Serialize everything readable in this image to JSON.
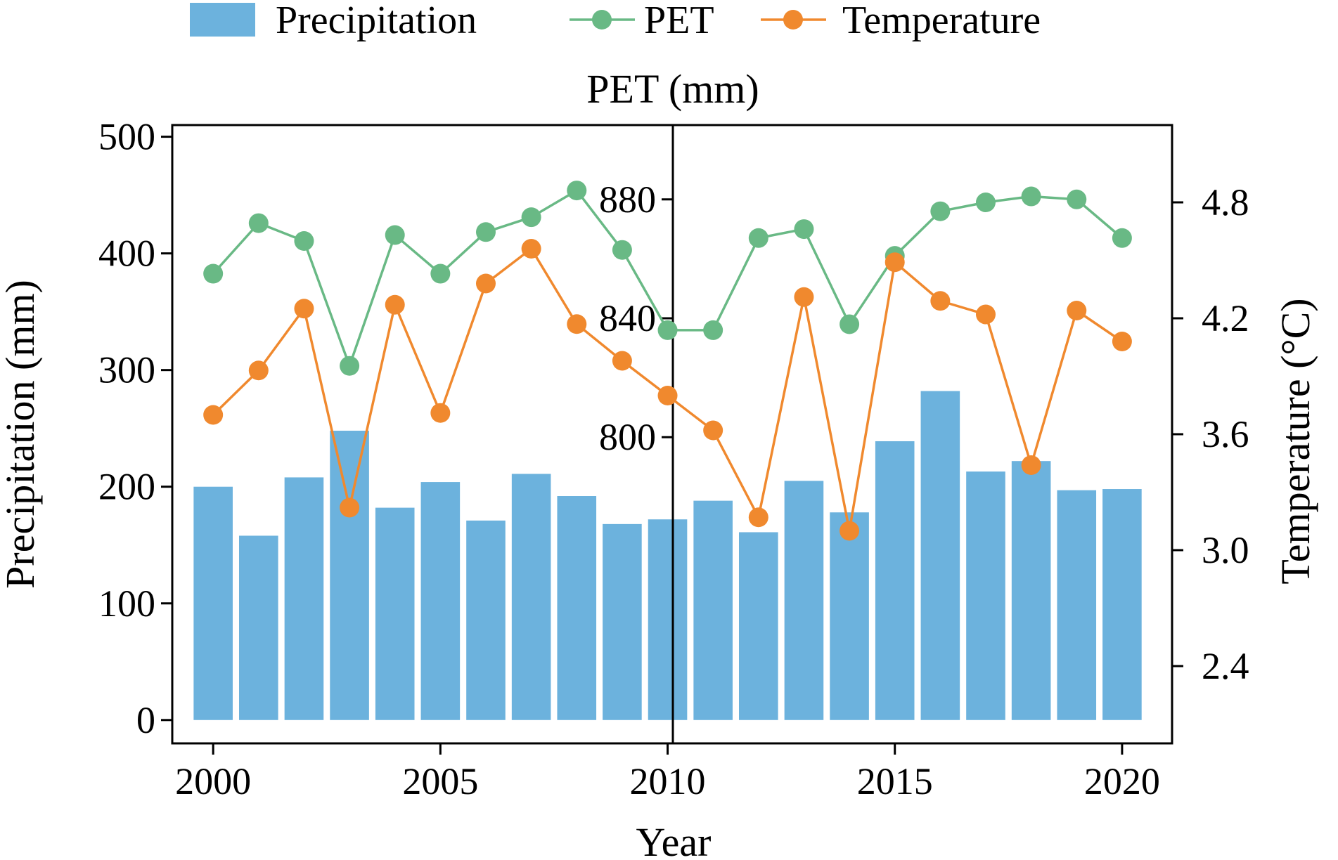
{
  "chart_data": {
    "type": "bar",
    "xlabel": "Year",
    "x": [
      2000,
      2001,
      2002,
      2003,
      2004,
      2005,
      2006,
      2007,
      2008,
      2009,
      2010,
      2011,
      2012,
      2013,
      2014,
      2015,
      2016,
      2017,
      2018,
      2019,
      2020
    ],
    "x_ticks": [
      "2000",
      "2005",
      "2010",
      "2015",
      "2020"
    ],
    "xlim": [
      1999.1,
      2021.1
    ],
    "left_axis": {
      "label": "Precipitation (mm)",
      "ylim": [
        -20,
        510
      ],
      "ticks": [
        "0",
        "100",
        "200",
        "300",
        "400",
        "500"
      ]
    },
    "pet_axis": {
      "label": "PET (mm)",
      "ticks": [
        "800",
        "840",
        "880"
      ],
      "ylim": [
        697,
        905
      ]
    },
    "right_axis": {
      "label": "Temperature (°C)",
      "ylim": [
        2.0,
        5.2
      ],
      "ticks": [
        "2.4",
        "3.0",
        "3.6",
        "4.2",
        "4.8"
      ]
    },
    "legend": {
      "position": "top",
      "items": [
        {
          "label": "Precipitation",
          "marker": "bar",
          "color": "#6cb2dd"
        },
        {
          "label": "PET",
          "marker": "line-circle",
          "color": "#69b985"
        },
        {
          "label": "Temperature",
          "marker": "line-circle",
          "color": "#f0892e"
        }
      ]
    },
    "series": [
      {
        "name": "Precipitation",
        "type": "bar",
        "axis": "left",
        "color": "#6cb2dd",
        "values": [
          200,
          158,
          208,
          248,
          182,
          204,
          171,
          211,
          192,
          168,
          172,
          188,
          161,
          205,
          178,
          239,
          282,
          213,
          222,
          197,
          198
        ]
      },
      {
        "name": "PET",
        "type": "line",
        "axis": "pet",
        "color": "#69b985",
        "values": [
          855,
          872,
          866,
          824,
          868,
          855,
          869,
          874,
          883,
          863,
          836,
          836,
          867,
          870,
          838,
          861,
          876,
          879,
          881,
          880,
          867
        ]
      },
      {
        "name": "Temperature",
        "type": "line",
        "axis": "right",
        "color": "#f0892e",
        "values": [
          3.7,
          3.93,
          4.25,
          3.22,
          4.27,
          3.71,
          4.38,
          4.56,
          4.17,
          3.98,
          3.8,
          3.62,
          3.17,
          4.31,
          3.1,
          4.49,
          4.29,
          4.22,
          3.44,
          4.24,
          4.08
        ]
      }
    ]
  }
}
